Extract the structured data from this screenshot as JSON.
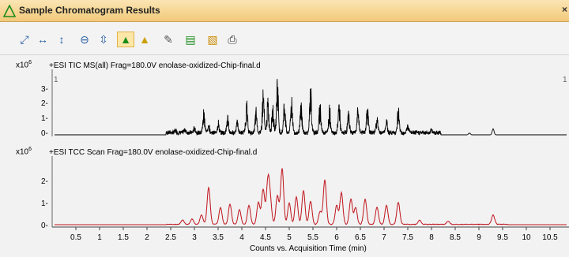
{
  "window": {
    "title": "Sample Chromatogram Results",
    "close": "×"
  },
  "toolbar": {
    "buttons": [
      {
        "name": "autoscale-xy-icon",
        "glyph": "⤢"
      },
      {
        "name": "autoscale-x-icon",
        "glyph": "↔"
      },
      {
        "name": "autoscale-y-icon",
        "glyph": "↕"
      },
      {
        "name": "zoom-out-icon",
        "glyph": "⊖"
      },
      {
        "name": "fit-y-icon",
        "glyph": "⇳"
      },
      {
        "name": "peak-label-icon",
        "glyph": "▲"
      },
      {
        "name": "integrate-icon",
        "glyph": "▲"
      },
      {
        "name": "notes-icon",
        "glyph": "✎"
      },
      {
        "name": "chart-properties-icon",
        "glyph": "▤"
      },
      {
        "name": "image-icon",
        "glyph": "▧"
      },
      {
        "name": "print-icon",
        "glyph": "⎙"
      }
    ]
  },
  "panels": [
    {
      "exponent": "x10",
      "exponent_sup": "6",
      "header": "+ESI TIC MS(all) Frag=180.0V enolase-oxidized-Chip-final.d",
      "marker_left": "1",
      "marker_right": "1",
      "y_ticks": [
        "3-",
        "2-",
        "1-",
        "0-"
      ],
      "color": "#000000"
    },
    {
      "exponent": "x10",
      "exponent_sup": "6",
      "header": "+ESI TCC Scan Frag=180.0V enolase-oxidized-Chip-final.d",
      "y_ticks": [
        "2-",
        "1-",
        "0-"
      ],
      "color": "#c0141c"
    }
  ],
  "x_axis": {
    "label": "Counts vs. Acquisition Time (min)",
    "ticks": [
      "0.5",
      "1",
      "1.5",
      "2",
      "2.5",
      "3",
      "3.5",
      "4",
      "4.5",
      "5",
      "5.5",
      "6",
      "6.5",
      "7",
      "7.5",
      "8",
      "8.5",
      "9",
      "9.5",
      "10",
      "10.5"
    ]
  },
  "chart_data": [
    {
      "type": "line",
      "title": "+ESI TIC MS(all) Frag=180.0V enolase-oxidized-Chip-final.d",
      "xlabel": "Counts vs. Acquisition Time (min)",
      "ylabel": "x10^6",
      "xlim": [
        0,
        10.9
      ],
      "ylim": [
        0,
        3.6
      ],
      "peaks": [
        [
          2.6,
          0.15
        ],
        [
          2.8,
          0.2
        ],
        [
          3.0,
          0.3
        ],
        [
          3.2,
          1.3
        ],
        [
          3.3,
          0.5
        ],
        [
          3.5,
          0.6
        ],
        [
          3.7,
          0.9
        ],
        [
          3.9,
          0.7
        ],
        [
          4.1,
          1.6
        ],
        [
          4.3,
          1.2
        ],
        [
          4.45,
          2.3
        ],
        [
          4.55,
          1.7
        ],
        [
          4.65,
          1.5
        ],
        [
          4.75,
          3.2
        ],
        [
          4.9,
          1.8
        ],
        [
          5.05,
          2.0
        ],
        [
          5.25,
          1.6
        ],
        [
          5.45,
          2.5
        ],
        [
          5.65,
          1.6
        ],
        [
          5.85,
          1.4
        ],
        [
          6.05,
          1.7
        ],
        [
          6.25,
          1.1
        ],
        [
          6.45,
          1.3
        ],
        [
          6.65,
          1.4
        ],
        [
          6.85,
          0.9
        ],
        [
          7.05,
          0.7
        ],
        [
          7.3,
          1.3
        ],
        [
          7.5,
          0.4
        ],
        [
          8.0,
          0.2
        ],
        [
          8.8,
          0.1
        ],
        [
          9.3,
          0.35
        ]
      ]
    },
    {
      "type": "line",
      "title": "+ESI TCC Scan Frag=180.0V enolase-oxidized-Chip-final.d",
      "xlabel": "Counts vs. Acquisition Time (min)",
      "ylabel": "x10^6",
      "xlim": [
        0,
        10.9
      ],
      "ylim": [
        0,
        2.8
      ],
      "peaks": [
        [
          2.75,
          0.2
        ],
        [
          2.95,
          0.25
        ],
        [
          3.15,
          0.45
        ],
        [
          3.3,
          1.75
        ],
        [
          3.55,
          0.8
        ],
        [
          3.75,
          0.95
        ],
        [
          3.95,
          0.7
        ],
        [
          4.15,
          0.9
        ],
        [
          4.35,
          1.05
        ],
        [
          4.45,
          1.65
        ],
        [
          4.55,
          2.0
        ],
        [
          4.6,
          1.0
        ],
        [
          4.75,
          1.35
        ],
        [
          4.85,
          2.65
        ],
        [
          5.0,
          1.0
        ],
        [
          5.15,
          1.3
        ],
        [
          5.3,
          1.6
        ],
        [
          5.45,
          1.1
        ],
        [
          5.65,
          0.6
        ],
        [
          5.75,
          2.1
        ],
        [
          6.0,
          0.9
        ],
        [
          6.1,
          1.5
        ],
        [
          6.3,
          1.2
        ],
        [
          6.4,
          0.8
        ],
        [
          6.6,
          1.2
        ],
        [
          6.85,
          0.8
        ],
        [
          7.05,
          0.9
        ],
        [
          7.3,
          1.05
        ],
        [
          7.75,
          0.2
        ],
        [
          8.35,
          0.15
        ],
        [
          9.3,
          0.45
        ]
      ]
    }
  ]
}
